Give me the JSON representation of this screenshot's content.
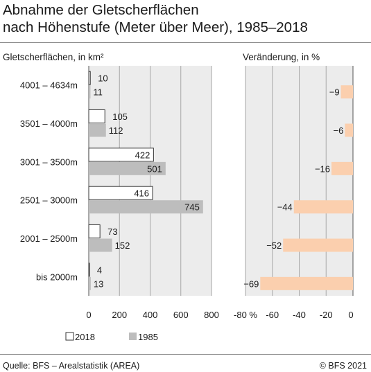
{
  "title_line1": "Abnahme der Gletscherflächen",
  "title_line2": "nach Höhenstufe (Meter über Meer), 1985–2018",
  "source": "Quelle: BFS – Arealstatistik (AREA)",
  "copyright": "© BFS 2021",
  "colors": {
    "s2018": "#ffffff",
    "s1985": "#bdbdbd",
    "change": "#fbcfae",
    "panel_bg": "#ececec",
    "grid": "#a6a6a6"
  },
  "chart_data": [
    {
      "type": "bar",
      "orientation": "horizontal",
      "title": "Gletscherflächen, in km²",
      "categories": [
        "4001 – 4634m",
        "3501 – 4000m",
        "3001 – 3500m",
        "2501 – 3000m",
        "2001 – 2500m",
        "bis 2000m"
      ],
      "series": [
        {
          "name": "2018",
          "values": [
            10,
            105,
            422,
            416,
            73,
            4
          ],
          "labels": [
            "10",
            "105",
            "422",
            "416",
            "73",
            "4"
          ]
        },
        {
          "name": "1985",
          "values": [
            11,
            112,
            501,
            745,
            152,
            13
          ],
          "labels": [
            "11",
            "112",
            "501",
            "745",
            "152",
            "13"
          ]
        }
      ],
      "xlim": [
        0,
        800
      ],
      "xticks": [
        0,
        200,
        400,
        600,
        800
      ],
      "xtick_labels": [
        "0",
        "200",
        "400",
        "600",
        "800"
      ],
      "grid": true,
      "legend": "bottom"
    },
    {
      "type": "bar",
      "orientation": "horizontal",
      "title": "Veränderung, in %",
      "categories": [
        "4001 – 4634m",
        "3501 – 4000m",
        "3001 – 3500m",
        "2501 – 3000m",
        "2001 – 2500m",
        "bis 2000m"
      ],
      "values": [
        -9,
        -6,
        -16,
        -44,
        -52,
        -69
      ],
      "labels": [
        "−9",
        "−6",
        "−16",
        "−44",
        "−52",
        "−69"
      ],
      "xlim": [
        -80,
        0
      ],
      "xticks": [
        -80,
        -60,
        -40,
        -20,
        0
      ],
      "xtick_labels": [
        "-80 %",
        "-60",
        "-40",
        "-20",
        "0"
      ],
      "grid": true
    }
  ]
}
